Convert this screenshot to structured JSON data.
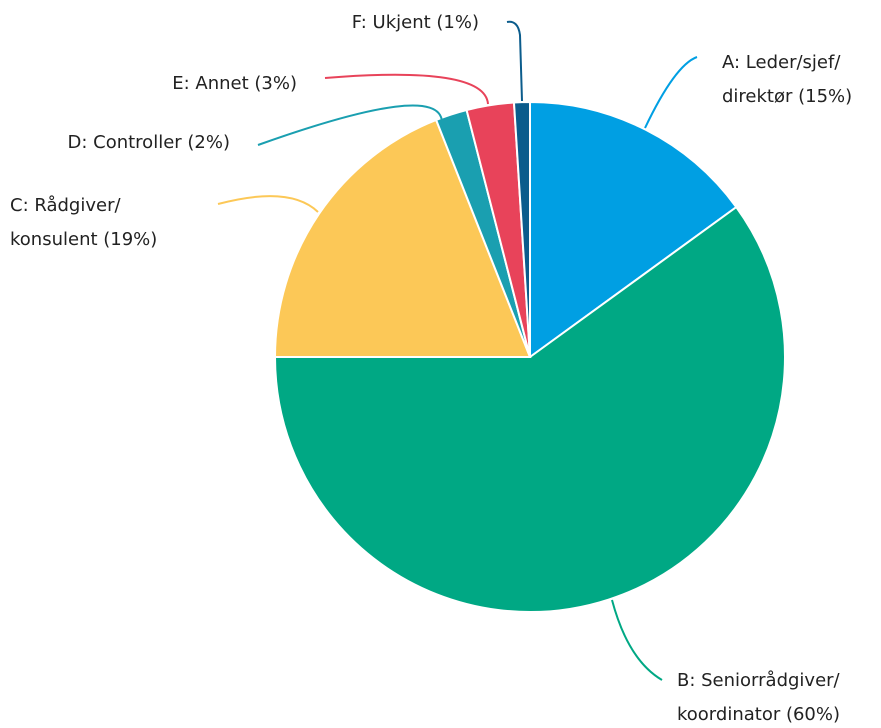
{
  "chart_data": {
    "type": "pie",
    "values": [
      15,
      60,
      19,
      2,
      3,
      1
    ],
    "value_labels": [
      "A: Leder/sjef/\ndirektør (15%)",
      "B: Seniorrådgiver/\nkoordinator (60%)",
      "C: Rådgiver/\nkonsulent (19%)",
      "D: Controller (2%)",
      "E: Annet (3%)",
      "F: Ukjent (1%)"
    ],
    "colors": [
      "#009fe3",
      "#00a884",
      "#fcc857",
      "#1a9fb0",
      "#e8435a",
      "#0b5c8c"
    ]
  }
}
